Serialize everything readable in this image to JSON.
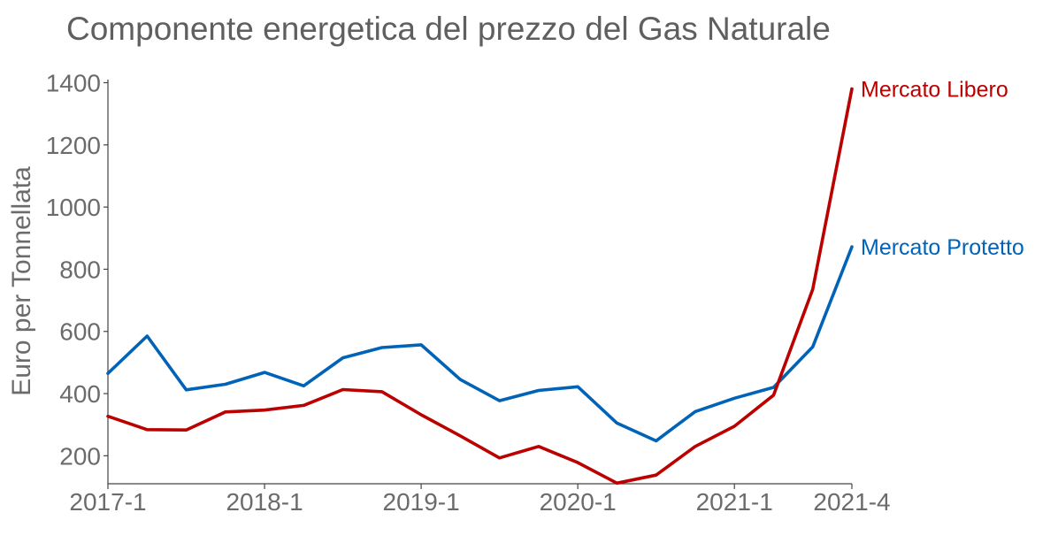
{
  "chart_data": {
    "type": "line",
    "title": "Componente energetica del prezzo del Gas Naturale",
    "ylabel": "Euro per Tonnellata",
    "xlabel": "",
    "ylim": [
      110,
      1410
    ],
    "y_ticks": [
      200,
      400,
      600,
      800,
      1000,
      1200,
      1400
    ],
    "x_ticks": [
      "2017-1",
      "2018-1",
      "2019-1",
      "2020-1",
      "2021-1",
      "2021-4"
    ],
    "x": [
      "2017-1",
      "2017-2",
      "2017-3",
      "2017-4",
      "2018-1",
      "2018-2",
      "2018-3",
      "2018-4",
      "2019-1",
      "2019-2",
      "2019-3",
      "2019-4",
      "2020-1",
      "2020-2",
      "2020-3",
      "2020-4",
      "2021-1",
      "2021-2",
      "2021-3",
      "2021-4"
    ],
    "grid": false,
    "legend": "inline labels at right end of lines",
    "series": [
      {
        "name": "Mercato Protetto",
        "color": "#0063b8",
        "values": [
          465,
          585,
          412,
          430,
          468,
          425,
          515,
          548,
          557,
          445,
          377,
          410,
          422,
          305,
          248,
          342,
          385,
          420,
          550,
          872
        ]
      },
      {
        "name": "Mercato Libero",
        "color": "#bb0000",
        "values": [
          327,
          284,
          283,
          341,
          347,
          362,
          413,
          406,
          332,
          264,
          193,
          230,
          178,
          112,
          138,
          230,
          295,
          395,
          735,
          1380
        ]
      }
    ]
  }
}
